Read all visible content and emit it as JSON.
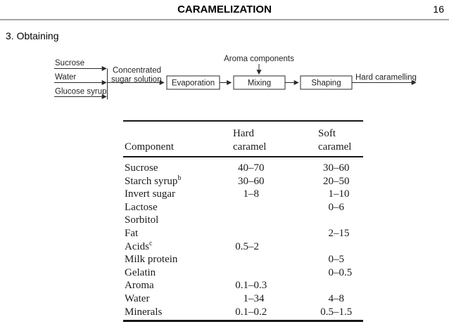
{
  "slide": {
    "title": "CARAMELIZATION",
    "page_number": "16",
    "section_heading": "3. Obtaining"
  },
  "diagram": {
    "inputs": [
      "Sucrose",
      "Water",
      "Glucose syrup"
    ],
    "intermediate_label": [
      "Concentrated",
      "sugar solution"
    ],
    "aroma_label": "Aroma components",
    "boxes": [
      "Evaporation",
      "Mixing",
      "Shaping"
    ],
    "output_label": "Hard caramelling"
  },
  "table": {
    "columns": [
      "Component",
      "Hard\ncaramel",
      "Soft\ncaramel"
    ],
    "rows": [
      {
        "component": "Sucrose",
        "sup": "",
        "hard": "40–70",
        "soft": "30–60"
      },
      {
        "component": "Starch syrup",
        "sup": "b",
        "hard": "30–60",
        "soft": "20–50"
      },
      {
        "component": "Invert sugar",
        "sup": "",
        "hard": "1–8",
        "soft": "1–10"
      },
      {
        "component": "Lactose",
        "sup": "",
        "hard": "",
        "soft": "0–6"
      },
      {
        "component": "Sorbitol",
        "sup": "",
        "hard": "",
        "soft": ""
      },
      {
        "component": "Fat",
        "sup": "",
        "hard": "",
        "soft": "2–15"
      },
      {
        "component": "Acids",
        "sup": "c",
        "hard": "0.5–2",
        "soft": ""
      },
      {
        "component": "Milk protein",
        "sup": "",
        "hard": "",
        "soft": "0–5"
      },
      {
        "component": "Gelatin",
        "sup": "",
        "hard": "",
        "soft": "0–0.5"
      },
      {
        "component": "Aroma",
        "sup": "",
        "hard": "0.1–0.3",
        "soft": ""
      },
      {
        "component": "Water",
        "sup": "",
        "hard": "1–34",
        "soft": "4–8"
      },
      {
        "component": "Minerals",
        "sup": "",
        "hard": "0.1–0.2",
        "soft": "0.5–1.5"
      }
    ]
  },
  "colors": {
    "divider": "#a6a6a6",
    "ink": "#1b1b1b"
  }
}
